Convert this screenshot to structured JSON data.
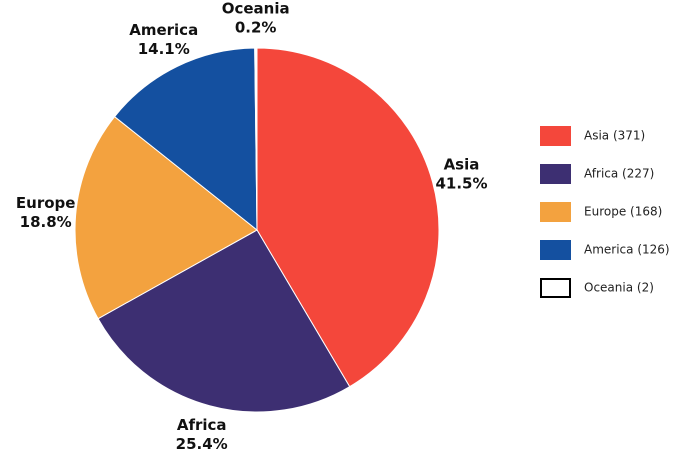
{
  "chart_data": {
    "type": "pie",
    "categories": [
      "Asia",
      "Africa",
      "Europe",
      "America",
      "Oceania"
    ],
    "values": [
      41.5,
      25.4,
      18.8,
      14.1,
      0.2
    ],
    "value_labels": [
      "41.5%",
      "25.4%",
      "18.8%",
      "14.1%",
      "0.2%"
    ],
    "colors": [
      "#f4473b",
      "#3d2f72",
      "#f3a23f",
      "#1450a0",
      "#ffffff"
    ],
    "legend_labels": [
      "Asia (371)",
      "Africa (227)",
      "Europe (168)",
      "America (126)",
      "Oceania (2)"
    ],
    "legend": "right"
  }
}
